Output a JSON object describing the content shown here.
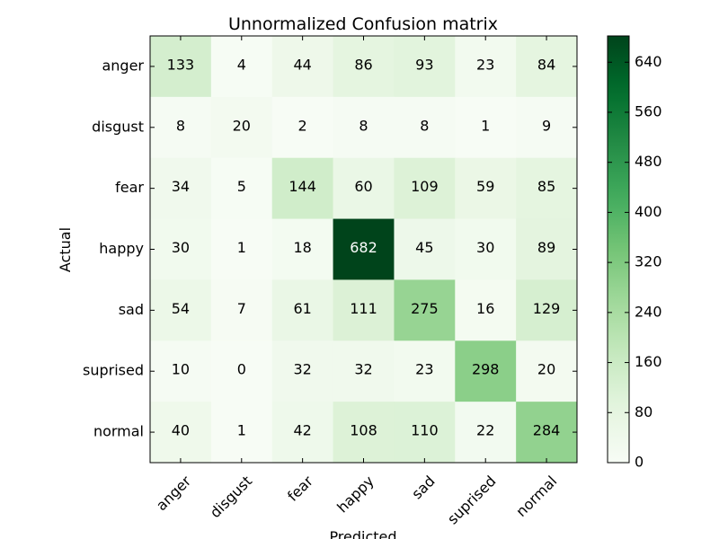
{
  "chart_data": {
    "type": "heatmap",
    "title": "Unnormalized Confusion matrix",
    "xlabel": "Predicted",
    "ylabel": "Actual",
    "x_categories": [
      "anger",
      "disgust",
      "fear",
      "happy",
      "sad",
      "suprised",
      "normal"
    ],
    "y_categories": [
      "anger",
      "disgust",
      "fear",
      "happy",
      "sad",
      "suprised",
      "normal"
    ],
    "values": [
      [
        133,
        4,
        44,
        86,
        93,
        23,
        84
      ],
      [
        8,
        20,
        2,
        8,
        8,
        1,
        9
      ],
      [
        34,
        5,
        144,
        60,
        109,
        59,
        85
      ],
      [
        30,
        1,
        18,
        682,
        45,
        30,
        89
      ],
      [
        54,
        7,
        61,
        111,
        275,
        16,
        129
      ],
      [
        10,
        0,
        32,
        32,
        23,
        298,
        20
      ],
      [
        40,
        1,
        42,
        108,
        110,
        22,
        284
      ]
    ],
    "colormap": "Greens",
    "colors": {
      "low": "#f7fcf5",
      "high": "#00441b"
    },
    "colorbar": {
      "range": [
        0,
        682
      ],
      "ticks": [
        0,
        80,
        160,
        240,
        320,
        400,
        480,
        560,
        640
      ]
    }
  }
}
